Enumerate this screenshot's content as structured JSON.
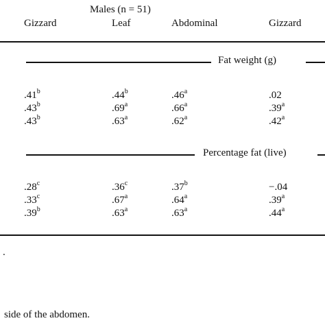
{
  "header": {
    "group_label": "Males (n = 51)",
    "columns": [
      "Gizzard",
      "Leaf",
      "Abdominal",
      "Gizzard"
    ]
  },
  "sections": [
    {
      "label": "Fat weight (g)",
      "rows": [
        [
          {
            "v": ".41",
            "s": "b"
          },
          {
            "v": ".44",
            "s": "b"
          },
          {
            "v": ".46",
            "s": "a"
          },
          {
            "v": ".02",
            "s": ""
          }
        ],
        [
          {
            "v": ".43",
            "s": "b"
          },
          {
            "v": ".69",
            "s": "a"
          },
          {
            "v": ".66",
            "s": "a"
          },
          {
            "v": ".39",
            "s": "a"
          }
        ],
        [
          {
            "v": ".43",
            "s": "b"
          },
          {
            "v": ".63",
            "s": "a"
          },
          {
            "v": ".62",
            "s": "a"
          },
          {
            "v": ".42",
            "s": "a"
          }
        ]
      ]
    },
    {
      "label": "Percentage fat (live)",
      "rows": [
        [
          {
            "v": ".28",
            "s": "c"
          },
          {
            "v": ".36",
            "s": "c"
          },
          {
            "v": ".37",
            "s": "b"
          },
          {
            "v": "−.04",
            "s": ""
          }
        ],
        [
          {
            "v": ".33",
            "s": "c"
          },
          {
            "v": ".67",
            "s": "a"
          },
          {
            "v": ".64",
            "s": "a"
          },
          {
            "v": ".39",
            "s": "a"
          }
        ],
        [
          {
            "v": ".39",
            "s": "b"
          },
          {
            "v": ".63",
            "s": "a"
          },
          {
            "v": ".63",
            "s": "a"
          },
          {
            "v": ".44",
            "s": "a"
          }
        ]
      ]
    }
  ],
  "footnotes": {
    "dot": ".",
    "abdomen_note": "side of the abdomen."
  }
}
